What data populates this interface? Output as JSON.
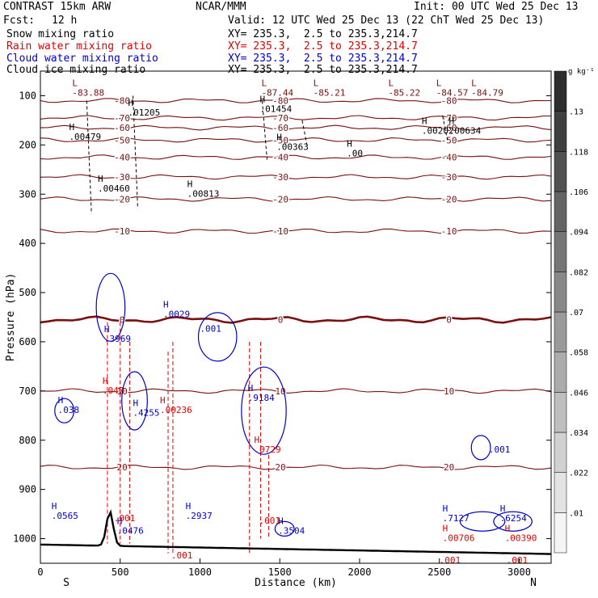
{
  "header": {
    "model": "CONTRAST 15km ARW",
    "center": "NCAR/MMM",
    "init": "Init: 00 UTC Wed 25 Dec 13",
    "fcst_label": "Fcst:",
    "fcst_value": "12 h",
    "valid": "Valid: 12 UTC Wed 25 Dec 13 (22 ChT Wed 25 Dec 13)"
  },
  "fields": [
    {
      "name": "Snow mixing ratio",
      "xy": "XY= 235.3,  2.5 to 235.3,214.7",
      "color": "#000000"
    },
    {
      "name": "Rain water mixing ratio",
      "xy": "XY= 235.3,  2.5 to 235.3,214.7",
      "color": "#e00000"
    },
    {
      "name": "Cloud water mixing ratio",
      "xy": "XY= 235.3,  2.5 to 235.3,214.7",
      "color": "#0000cc"
    },
    {
      "name": "Cloud ice mixing ratio",
      "xy": "XY= 235.3,  2.5 to 235.3,214.7",
      "color": "#000000"
    }
  ],
  "chart_data": {
    "type": "cross-section",
    "xlabel": "Distance (km)",
    "ylabel": "Pressure (hPa)",
    "xlim": [
      0,
      3200
    ],
    "ylim": [
      1050,
      50
    ],
    "x_ticks": [
      0,
      500,
      1000,
      1500,
      2000,
      2500,
      3000
    ],
    "y_ticks": [
      100,
      200,
      300,
      400,
      500,
      600,
      700,
      800,
      900,
      1000
    ],
    "end_left": "S",
    "end_right": "N",
    "colorbar": {
      "unit": "g kg⁻¹",
      "ticks": [
        ".01",
        ".022",
        ".034",
        ".046",
        ".058",
        ".07",
        ".082",
        ".094",
        ".106",
        ".118",
        ".13"
      ]
    },
    "temperature_contours": [
      {
        "label": "-80",
        "p": 110
      },
      {
        "label": "-70",
        "p": 145
      },
      {
        "label": "-60",
        "p": 165
      },
      {
        "label": "-50",
        "p": 190
      },
      {
        "label": "-40",
        "p": 225
      },
      {
        "label": "-30",
        "p": 265
      },
      {
        "label": "-20",
        "p": 310
      },
      {
        "label": "-10",
        "p": 375
      },
      {
        "label": "0",
        "p": 555
      },
      {
        "label": "10",
        "p": 700
      },
      {
        "label": "20",
        "p": 855
      }
    ],
    "temperature_extrema": [
      {
        "kind": "L",
        "value": "-83.88",
        "x": 240,
        "p": 95
      },
      {
        "kind": "L",
        "value": "-87.44",
        "x": 1425,
        "p": 95
      },
      {
        "kind": "L",
        "value": "-85.21",
        "x": 1750,
        "p": 95
      },
      {
        "kind": "L",
        "value": "-85.22",
        "x": 2220,
        "p": 95
      },
      {
        "kind": "L",
        "value": "-84.57",
        "x": 2520,
        "p": 95
      },
      {
        "kind": "L",
        "value": "-84.79",
        "x": 2740,
        "p": 95
      }
    ],
    "cloud_ice_labels": [
      {
        "kind": "H",
        "value": ".01205",
        "x": 590,
        "p": 135
      },
      {
        "kind": "H",
        "value": ".01454",
        "x": 1415,
        "p": 128
      },
      {
        "kind": "H",
        "value": ".00479",
        "x": 220,
        "p": 185
      },
      {
        "kind": "H",
        "value": ".00202",
        "x": 2430,
        "p": 172
      },
      {
        "kind": "H",
        "value": ".00634",
        "x": 2600,
        "p": 172
      },
      {
        "kind": "H",
        "value": ".00363",
        "x": 1520,
        "p": 205
      },
      {
        "kind": "H",
        "value": ".00460",
        "x": 400,
        "p": 290
      },
      {
        "kind": "H",
        "value": ".00813",
        "x": 960,
        "p": 300
      },
      {
        "kind": "H",
        "value": ".00",
        "x": 1960,
        "p": 218
      }
    ],
    "cloud_water_labels": [
      {
        "kind": "H",
        "value": ".0029",
        "x": 810,
        "p": 545
      },
      {
        "kind": "",
        "value": ".001",
        "x": 1040,
        "p": 575
      },
      {
        "kind": "H",
        "value": ".3969",
        "x": 440,
        "p": 595
      },
      {
        "kind": "H",
        "value": ".9184",
        "x": 1340,
        "p": 715
      },
      {
        "kind": "H",
        "value": ".4255",
        "x": 620,
        "p": 745
      },
      {
        "kind": "H",
        "value": ".038",
        "x": 150,
        "p": 740
      },
      {
        "kind": "H",
        "value": ".2937",
        "x": 950,
        "p": 955
      },
      {
        "kind": "H",
        "value": ".0565",
        "x": 110,
        "p": 955
      },
      {
        "kind": "H",
        "value": ".0476",
        "x": 520,
        "p": 985
      },
      {
        "kind": "H",
        "value": ".3504",
        "x": 1530,
        "p": 985
      },
      {
        "kind": "H",
        "value": ".7127",
        "x": 2560,
        "p": 960
      },
      {
        "kind": "H",
        "value": ".6254",
        "x": 2920,
        "p": 960
      },
      {
        "kind": "",
        "value": ".001",
        "x": 2850,
        "p": 820
      }
    ],
    "rain_water_labels": [
      {
        "kind": "H",
        "value": ".047",
        "x": 430,
        "p": 700
      },
      {
        "kind": "H",
        "value": ".00236",
        "x": 790,
        "p": 740
      },
      {
        "kind": "H",
        "value": ".0729",
        "x": 1380,
        "p": 820
      },
      {
        "kind": "",
        "value": ".001",
        "x": 500,
        "p": 960
      },
      {
        "kind": "",
        "value": ".001",
        "x": 1410,
        "p": 965
      },
      {
        "kind": "",
        "value": ".001",
        "x": 860,
        "p": 1035
      },
      {
        "kind": "H",
        "value": ".00706",
        "x": 2560,
        "p": 1000
      },
      {
        "kind": "H",
        "value": ".00390",
        "x": 2950,
        "p": 1000
      },
      {
        "kind": "",
        "value": ".001",
        "x": 2540,
        "p": 1045
      },
      {
        "kind": "",
        "value": ".001",
        "x": 2960,
        "p": 1045
      }
    ]
  }
}
